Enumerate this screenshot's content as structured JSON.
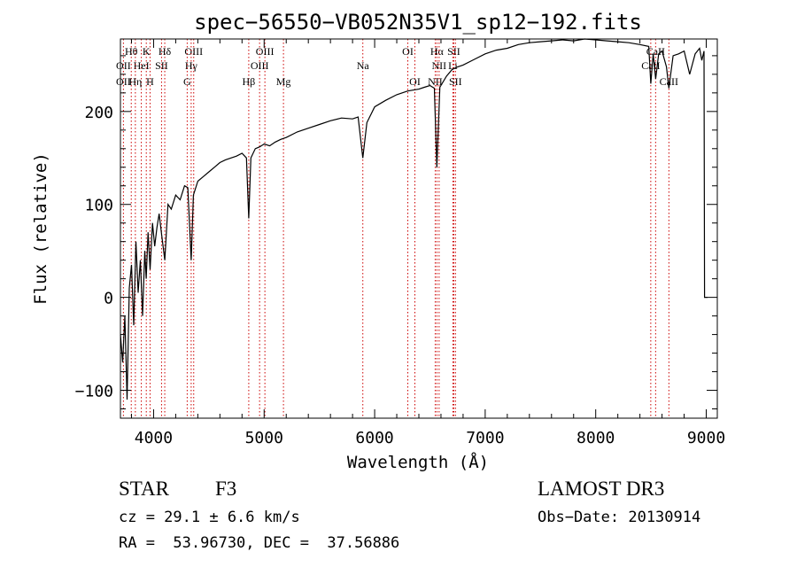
{
  "chart_data": {
    "type": "line",
    "title": "spec−56550−VB052N35V1_sp12−192.fits",
    "xlabel": "Wavelength (Å)",
    "ylabel": "Flux (relative)",
    "xlim": [
      3700,
      9100
    ],
    "ylim": [
      -130,
      278
    ],
    "x_ticks": [
      4000,
      5000,
      6000,
      7000,
      8000,
      9000
    ],
    "y_ticks": [
      -100,
      0,
      100,
      200
    ],
    "grid": false,
    "colors": {
      "spectrum": "#000000",
      "lines": "#cc0000"
    },
    "series": [
      {
        "name": "spectrum",
        "x": [
          3700,
          3720,
          3740,
          3760,
          3780,
          3800,
          3820,
          3840,
          3860,
          3880,
          3900,
          3920,
          3933,
          3950,
          3968,
          3990,
          4010,
          4030,
          4050,
          4070,
          4101,
          4130,
          4160,
          4200,
          4240,
          4280,
          4310,
          4340,
          4360,
          4400,
          4450,
          4500,
          4550,
          4600,
          4650,
          4700,
          4750,
          4800,
          4840,
          4861,
          4880,
          4920,
          4960,
          5000,
          5050,
          5100,
          5150,
          5200,
          5300,
          5400,
          5500,
          5600,
          5700,
          5800,
          5850,
          5893,
          5930,
          6000,
          6100,
          6200,
          6300,
          6400,
          6450,
          6500,
          6540,
          6563,
          6590,
          6650,
          6700,
          6750,
          6800,
          6900,
          7000,
          7100,
          7200,
          7300,
          7400,
          7500,
          7600,
          7700,
          7800,
          7900,
          8000,
          8100,
          8200,
          8300,
          8400,
          8480,
          8498,
          8520,
          8542,
          8570,
          8600,
          8640,
          8662,
          8700,
          8750,
          8800,
          8850,
          8900,
          8940,
          8960,
          8980,
          8985,
          9000,
          9010
        ],
        "y": [
          -40,
          -70,
          -20,
          -110,
          10,
          35,
          -30,
          60,
          5,
          40,
          -20,
          50,
          20,
          70,
          30,
          80,
          55,
          75,
          90,
          70,
          40,
          100,
          95,
          110,
          105,
          120,
          118,
          40,
          110,
          125,
          130,
          135,
          140,
          145,
          148,
          150,
          152,
          155,
          150,
          85,
          150,
          160,
          162,
          165,
          163,
          167,
          170,
          172,
          178,
          182,
          186,
          190,
          193,
          192,
          194,
          150,
          188,
          205,
          212,
          218,
          222,
          224,
          226,
          228,
          225,
          140,
          226,
          238,
          245,
          248,
          250,
          256,
          262,
          266,
          268,
          272,
          274,
          275,
          276,
          277,
          276,
          278,
          277,
          276,
          275,
          274,
          272,
          270,
          230,
          262,
          235,
          262,
          265,
          248,
          225,
          260,
          262,
          265,
          240,
          262,
          268,
          255,
          265,
          0,
          0,
          0
        ]
      }
    ],
    "line_markers": [
      {
        "label": "Hθ",
        "x": 3798,
        "row": 1
      },
      {
        "label": "K",
        "x": 3934,
        "row": 1
      },
      {
        "label": "Hδ",
        "x": 4101,
        "row": 1
      },
      {
        "label": "OIII",
        "x": 4363,
        "row": 1
      },
      {
        "label": "OIII",
        "x": 5007,
        "row": 1
      },
      {
        "label": "OI",
        "x": 6300,
        "row": 1
      },
      {
        "label": "Hα",
        "x": 6563,
        "row": 1
      },
      {
        "label": "SII",
        "x": 6716,
        "row": 1
      },
      {
        "label": "CaII",
        "x": 8542,
        "row": 1
      },
      {
        "label": "OII",
        "x": 3727,
        "row": 2
      },
      {
        "label": "HeI",
        "x": 3889,
        "row": 2
      },
      {
        "label": "SII",
        "x": 4072,
        "row": 2
      },
      {
        "label": "Hγ",
        "x": 4340,
        "row": 2
      },
      {
        "label": "OIII",
        "x": 4959,
        "row": 2
      },
      {
        "label": "Na",
        "x": 5893,
        "row": 2
      },
      {
        "label": "NII",
        "x": 6583,
        "row": 2
      },
      {
        "label": "Li",
        "x": 6708,
        "row": 2
      },
      {
        "label": "CaII",
        "x": 8498,
        "row": 2
      },
      {
        "label": "OII",
        "x": 3727,
        "row": 3
      },
      {
        "label": "Hη",
        "x": 3835,
        "row": 3
      },
      {
        "label": "H",
        "x": 3968,
        "row": 3
      },
      {
        "label": "G",
        "x": 4304,
        "row": 3
      },
      {
        "label": "Hβ",
        "x": 4861,
        "row": 3
      },
      {
        "label": "Mg",
        "x": 5175,
        "row": 3
      },
      {
        "label": "OI",
        "x": 6364,
        "row": 3
      },
      {
        "label": "NII",
        "x": 6548,
        "row": 3
      },
      {
        "label": "SII",
        "x": 6731,
        "row": 3
      },
      {
        "label": "CaII",
        "x": 8662,
        "row": 3
      }
    ]
  },
  "info": {
    "object_class": "STAR",
    "subclass": "F3",
    "survey": "LAMOST DR3",
    "redshift": "cz = 29.1 ± 6.6 km/s",
    "obs_date": "Obs−Date: 20130914",
    "coords": "RA =  53.96730, DEC =  37.56886"
  }
}
